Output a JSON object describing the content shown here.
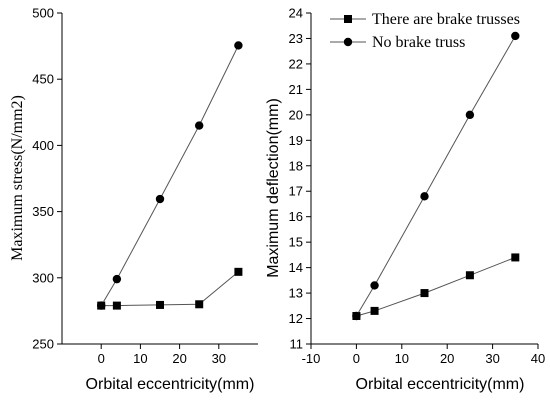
{
  "chart_data": [
    {
      "type": "line",
      "xlabel": "Orbital eccentricity(mm)",
      "ylabel": "Maximum stress(N/mm2)",
      "xlim": [
        -10,
        40
      ],
      "ylim": [
        250,
        500
      ],
      "xticks": [
        0,
        10,
        20,
        30
      ],
      "yticks": [
        250,
        300,
        350,
        400,
        450,
        500
      ],
      "x": [
        0,
        4,
        15,
        25,
        35
      ],
      "series": [
        {
          "name": "There are brake trusses",
          "marker": "square",
          "values": [
            279,
            279,
            279.5,
            280,
            304.5
          ]
        },
        {
          "name": "No brake truss",
          "marker": "circle",
          "values": [
            279,
            299,
            359.5,
            415,
            475.5
          ]
        }
      ]
    },
    {
      "type": "line",
      "xlabel": "Orbital eccentricity(mm)",
      "ylabel": "Maximum deflection(mm)",
      "xlim": [
        -10,
        40
      ],
      "ylim": [
        11,
        24
      ],
      "xticks": [
        -10,
        0,
        10,
        20,
        30,
        40
      ],
      "yticks": [
        11,
        12,
        13,
        14,
        15,
        16,
        17,
        18,
        19,
        20,
        21,
        22,
        23,
        24
      ],
      "x": [
        0,
        4,
        15,
        25,
        35
      ],
      "legend_position": "top-right",
      "series": [
        {
          "name": "There are brake trusses",
          "marker": "square",
          "values": [
            12.1,
            12.3,
            13.0,
            13.7,
            14.4
          ]
        },
        {
          "name": "No brake truss",
          "marker": "circle",
          "values": [
            12.1,
            13.3,
            16.8,
            20.0,
            23.1
          ]
        }
      ]
    }
  ]
}
